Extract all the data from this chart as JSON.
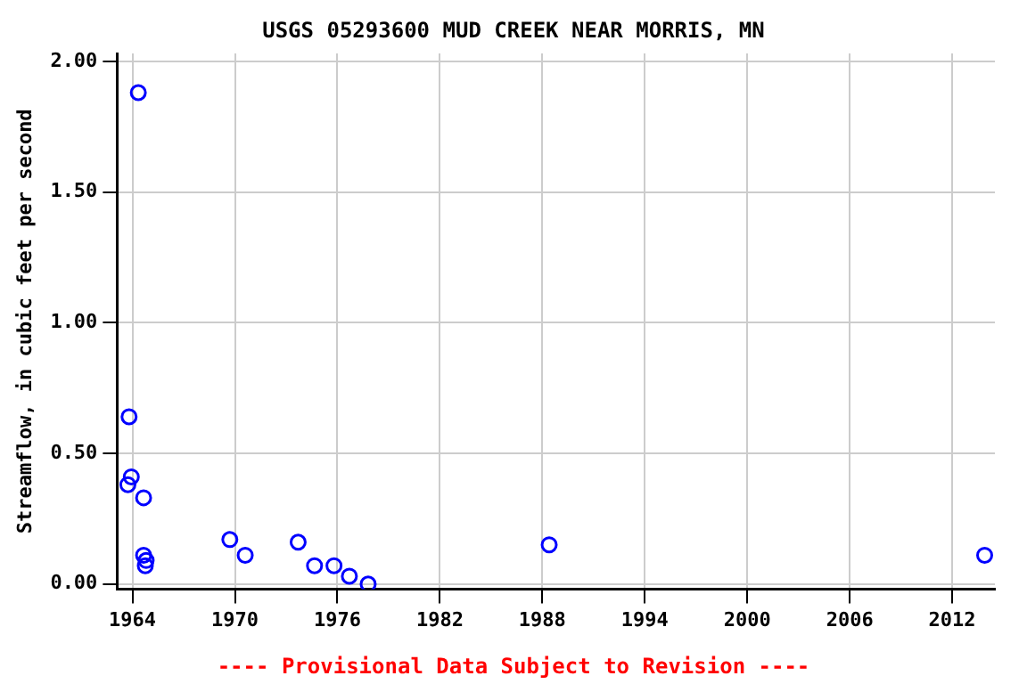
{
  "chart_data": {
    "type": "scatter",
    "title": "USGS 05293600 MUD CREEK NEAR MORRIS, MN",
    "ylabel": "Streamflow, in cubic feet per second",
    "annotations": [
      "---- Provisional Data Subject to Revision ----"
    ],
    "x": [
      1964.34,
      1963.8,
      1963.93,
      1963.73,
      1964.65,
      1964.65,
      1964.8,
      1964.75,
      1969.7,
      1970.6,
      1973.7,
      1974.66,
      1975.8,
      1976.7,
      1977.8,
      1988.4,
      2013.9
    ],
    "values": [
      1.88,
      0.64,
      0.41,
      0.38,
      0.33,
      0.11,
      0.09,
      0.07,
      0.17,
      0.11,
      0.16,
      0.07,
      0.07,
      0.03,
      0.0,
      0.15,
      0.11
    ],
    "color": "#0000ff",
    "marker": "circle",
    "grid": true,
    "xlim": [
      1963.1,
      2014.5
    ],
    "xticks": [
      1964,
      1970,
      1976,
      1982,
      1988,
      1994,
      2000,
      2006,
      2012
    ],
    "ylim": [
      -0.02,
      2.03
    ],
    "yticks": [
      {
        "value": 0,
        "label": "0.00"
      },
      {
        "value": 0.5,
        "label": "0.50"
      },
      {
        "value": 1,
        "label": "1.00"
      },
      {
        "value": 1.5,
        "label": "1.50"
      },
      {
        "value": 2,
        "label": "2.00"
      }
    ]
  }
}
